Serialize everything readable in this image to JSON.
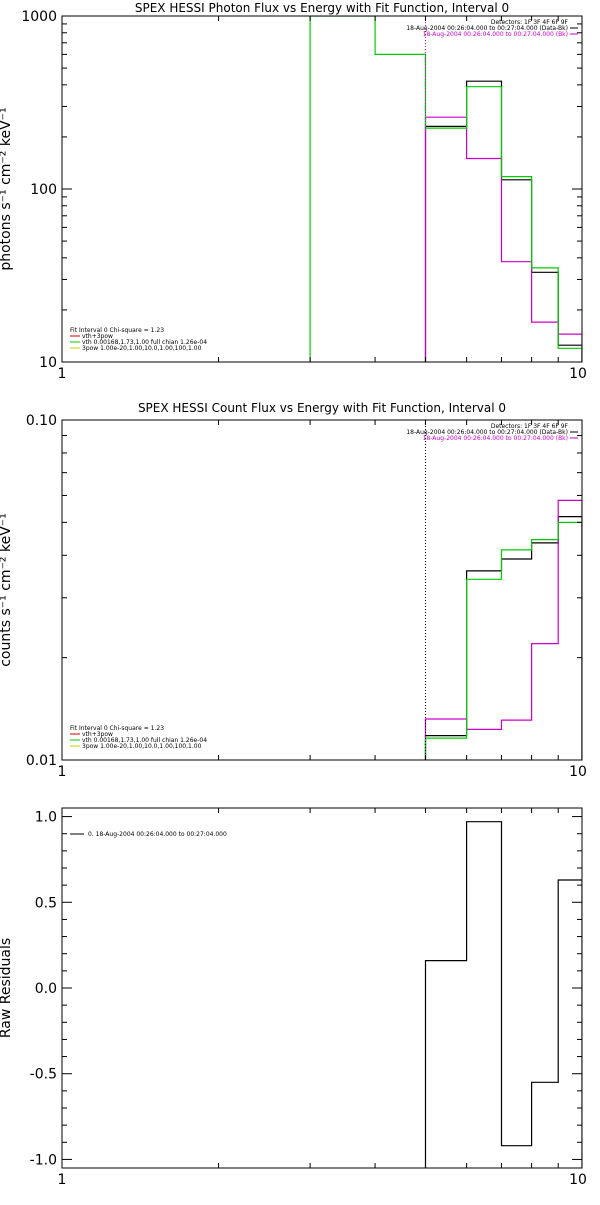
{
  "chart_data": [
    {
      "type": "line",
      "title": "SPEX HESSI Photon Flux vs Energy with Fit Function, Interval 0",
      "xlabel": "",
      "ylabel": "photons s⁻¹ cm⁻² keV⁻¹",
      "xscale": "log",
      "yscale": "log",
      "xlim": [
        1,
        10
      ],
      "ylim": [
        10,
        1000
      ],
      "x_tick_labels": [
        "1",
        "10"
      ],
      "y_tick_labels": [
        "10",
        "100",
        "1000"
      ],
      "y_ticks": [
        10,
        100,
        1000
      ],
      "info_lines": [
        "Detectors: 1F 3F 4F 6F 9F",
        "18-Aug-2004 00:26:04.000 to 00:27:04.000 (Data-Bk)",
        "18-Aug-2004 00:26:04.000 to 00:27:04.000 (Bk)"
      ],
      "info_colors": [
        "#000000",
        "#000000",
        "#cc00cc"
      ],
      "legend_title": "Fit Interval 0   Chi-square = 1.23",
      "legend_entries": [
        {
          "label": "vth+3pow",
          "color": "#cc0000"
        },
        {
          "label": "vth 0.00168,1.73,1.00  full chian 1.26e-04",
          "color": "#00cc00"
        },
        {
          "label": "3pow 1.00e-20,1.00,10.0,1.00,100,1.00",
          "color": "#cccc00"
        }
      ],
      "vline_x": 5.0,
      "vline_color": "#cc00cc",
      "series": [
        {
          "name": "Data-Bk",
          "color": "#000000",
          "style": "step",
          "bins": [
            [
              5,
              6,
              230
            ],
            [
              6,
              7,
              420
            ],
            [
              7,
              8,
              113
            ],
            [
              8,
              9,
              33
            ],
            [
              9,
              10,
              12.5
            ]
          ]
        },
        {
          "name": "Bk",
          "color": "#cc00cc",
          "style": "step",
          "bins": [
            [
              5,
              6,
              260
            ],
            [
              6,
              7,
              150
            ],
            [
              7,
              8,
              38
            ],
            [
              8,
              9,
              17
            ],
            [
              9,
              10,
              14.5
            ]
          ]
        },
        {
          "name": "vth",
          "color": "#00cc00",
          "style": "step",
          "bins": [
            [
              3,
              4,
              1000
            ],
            [
              4,
              5,
              600
            ],
            [
              5,
              6,
              225
            ],
            [
              6,
              7,
              390
            ],
            [
              7,
              8,
              118
            ],
            [
              8,
              9,
              35
            ],
            [
              9,
              10,
              12
            ]
          ]
        }
      ]
    },
    {
      "type": "line",
      "title": "SPEX HESSI Count Flux vs Energy with Fit Function, Interval 0",
      "xlabel": "",
      "ylabel": "counts s⁻¹ cm⁻² keV⁻¹",
      "xscale": "log",
      "yscale": "log",
      "xlim": [
        1,
        10
      ],
      "ylim": [
        0.01,
        0.1
      ],
      "x_tick_labels": [
        "1",
        "10"
      ],
      "y_tick_labels": [
        "0.01",
        "0.10"
      ],
      "y_ticks": [
        0.01,
        0.1
      ],
      "info_lines": [
        "Detectors: 1F 3F 4F 6F 9F",
        "18-Aug-2004 00:26:04.000 to 00:27:04.000 (Data-Bk)",
        "18-Aug-2004 00:26:04.000 to 00:27:04.000 (Bk)"
      ],
      "info_colors": [
        "#000000",
        "#000000",
        "#cc00cc"
      ],
      "legend_title": "Fit Interval 0   Chi-square = 1.23",
      "legend_entries": [
        {
          "label": "vth+3pow",
          "color": "#cc0000"
        },
        {
          "label": "vth 0.00168,1.73,1.00  full chian 1.26e-04",
          "color": "#00cc00"
        },
        {
          "label": "3pow 1.00e-20,1.00,10.0,1.00,100,1.00",
          "color": "#cccc00"
        }
      ],
      "vline_x": 5.0,
      "vline_color": "#000000",
      "series": [
        {
          "name": "Data-Bk",
          "color": "#000000",
          "style": "step",
          "bins": [
            [
              5,
              6,
              0.0118
            ],
            [
              6,
              7,
              0.036
            ],
            [
              7,
              8,
              0.039
            ],
            [
              8,
              9,
              0.0435
            ],
            [
              9,
              10,
              0.052
            ]
          ]
        },
        {
          "name": "Bk",
          "color": "#cc00cc",
          "style": "step",
          "bins": [
            [
              5,
              6,
              0.0132
            ],
            [
              6,
              7,
              0.0123
            ],
            [
              7,
              8,
              0.0131
            ],
            [
              8,
              9,
              0.022
            ],
            [
              9,
              10,
              0.058
            ]
          ]
        },
        {
          "name": "vth",
          "color": "#00cc00",
          "style": "step",
          "bins": [
            [
              5,
              6,
              0.0116
            ],
            [
              6,
              7,
              0.034
            ],
            [
              7,
              8,
              0.0415
            ],
            [
              8,
              9,
              0.0445
            ],
            [
              9,
              10,
              0.05
            ]
          ]
        }
      ]
    },
    {
      "type": "line",
      "title": "",
      "xlabel": "",
      "ylabel": "Raw Residuals",
      "xscale": "log",
      "yscale": "linear",
      "xlim": [
        1,
        10
      ],
      "ylim": [
        -1.05,
        1.05
      ],
      "x_tick_labels": [
        "1",
        "10"
      ],
      "y_tick_labels": [
        "1.0",
        "0.5",
        "0.0",
        "-0.5",
        "-1.0"
      ],
      "y_ticks": [
        1.0,
        0.5,
        0.0,
        -0.5,
        -1.0
      ],
      "info_lines": [],
      "info_colors": [],
      "legend_title": "",
      "legend_entries": [
        {
          "label": "0. 18-Aug-2004 00:26:04.000 to 00:27:04.000",
          "color": "#000000"
        }
      ],
      "series": [
        {
          "name": "0. 18-Aug-2004 00:26:04.000 to 00:27:04.000",
          "color": "#000000",
          "style": "step",
          "bins": [
            [
              5,
              6,
              0.16
            ],
            [
              6,
              7,
              0.97
            ],
            [
              7,
              8,
              -0.92
            ],
            [
              8,
              9,
              -0.55
            ],
            [
              9,
              10,
              0.63
            ]
          ]
        }
      ]
    }
  ]
}
